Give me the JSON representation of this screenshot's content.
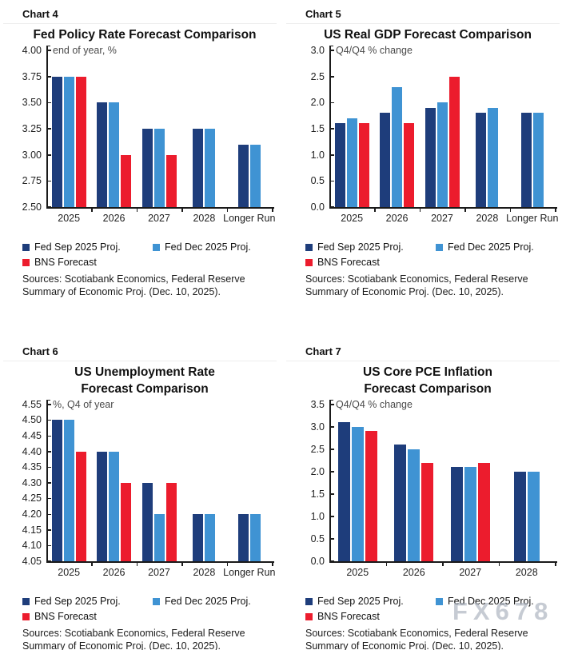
{
  "watermark": "FX678",
  "chart_data": [
    {
      "type": "bar",
      "label": "Chart 4",
      "title": "Fed Policy Rate Forecast Comparison",
      "unit_label": "end of year, %",
      "categories": [
        "2025",
        "2026",
        "2027",
        "2028",
        "Longer Run"
      ],
      "series": [
        {
          "name": "Fed Sep 2025 Proj.",
          "color": "#1e3d7b",
          "values": [
            3.75,
            3.5,
            3.25,
            3.25,
            3.1
          ]
        },
        {
          "name": "Fed Dec 2025 Proj.",
          "color": "#3f93d3",
          "values": [
            3.75,
            3.5,
            3.25,
            3.25,
            3.1
          ]
        },
        {
          "name": "BNS Forecast",
          "color": "#ec1c2d",
          "values": [
            3.75,
            3.0,
            3.0,
            null,
            null
          ]
        }
      ],
      "ylim": [
        2.5,
        4.0
      ],
      "ytick_step": 0.25,
      "ytick_decimals": 2,
      "grid": false,
      "legend_position": "bottom",
      "sources": "Sources: Scotiabank Economics, Federal Reserve\nSummary of Economic Proj. (Dec. 10, 2025)."
    },
    {
      "type": "bar",
      "label": "Chart 5",
      "title": "US Real GDP Forecast Comparison",
      "unit_label": "Q4/Q4 % change",
      "categories": [
        "2025",
        "2026",
        "2027",
        "2028",
        "Longer Run"
      ],
      "series": [
        {
          "name": "Fed Sep 2025 Proj.",
          "color": "#1e3d7b",
          "values": [
            1.6,
            1.8,
            1.9,
            1.8,
            1.8
          ]
        },
        {
          "name": "Fed Dec 2025 Proj.",
          "color": "#3f93d3",
          "values": [
            1.7,
            2.3,
            2.0,
            1.9,
            1.8
          ]
        },
        {
          "name": "BNS Forecast",
          "color": "#ec1c2d",
          "values": [
            1.6,
            1.6,
            2.5,
            null,
            null
          ]
        }
      ],
      "ylim": [
        0.0,
        3.0
      ],
      "ytick_step": 0.5,
      "ytick_decimals": 1,
      "grid": false,
      "legend_position": "bottom",
      "sources": "Sources: Scotiabank Economics, Federal Reserve\nSummary of Economic Proj. (Dec. 10, 2025)."
    },
    {
      "type": "bar",
      "label": "Chart 6",
      "title": "US Unemployment Rate\nForecast Comparison",
      "unit_label": "%, Q4 of year",
      "categories": [
        "2025",
        "2026",
        "2027",
        "2028",
        "Longer Run"
      ],
      "series": [
        {
          "name": "Fed Sep 2025 Proj.",
          "color": "#1e3d7b",
          "values": [
            4.5,
            4.4,
            4.3,
            4.2,
            4.2
          ]
        },
        {
          "name": "Fed Dec 2025 Proj.",
          "color": "#3f93d3",
          "values": [
            4.5,
            4.4,
            4.2,
            4.2,
            4.2
          ]
        },
        {
          "name": "BNS Forecast",
          "color": "#ec1c2d",
          "values": [
            4.4,
            4.3,
            4.3,
            null,
            null
          ]
        }
      ],
      "ylim": [
        4.05,
        4.55
      ],
      "ytick_step": 0.05,
      "ytick_decimals": 2,
      "grid": false,
      "legend_position": "bottom",
      "sources": "Sources: Scotiabank Economics, Federal Reserve\nSummary of Economic Proj. (Dec. 10, 2025)."
    },
    {
      "type": "bar",
      "label": "Chart 7",
      "title": "US Core PCE Inflation\nForecast Comparison",
      "unit_label": "Q4/Q4 % change",
      "categories": [
        "2025",
        "2026",
        "2027",
        "2028"
      ],
      "series": [
        {
          "name": "Fed Sep 2025 Proj.",
          "color": "#1e3d7b",
          "values": [
            3.1,
            2.6,
            2.1,
            2.0
          ]
        },
        {
          "name": "Fed Dec 2025 Proj.",
          "color": "#3f93d3",
          "values": [
            3.0,
            2.5,
            2.1,
            2.0
          ]
        },
        {
          "name": "BNS Forecast",
          "color": "#ec1c2d",
          "values": [
            2.9,
            2.2,
            2.2,
            null
          ]
        }
      ],
      "ylim": [
        0.0,
        3.5
      ],
      "ytick_step": 0.5,
      "ytick_decimals": 1,
      "grid": false,
      "legend_position": "bottom",
      "sources": "Sources: Scotiabank Economics, Federal Reserve\nSummary of Economic Proj. (Dec. 10, 2025)."
    }
  ]
}
